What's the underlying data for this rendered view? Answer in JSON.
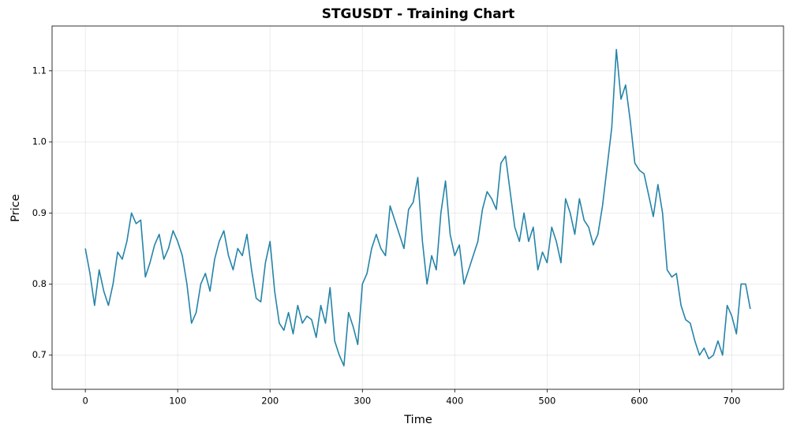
{
  "chart_data": {
    "type": "line",
    "title": "STGUSDT - Training Chart",
    "xlabel": "Time",
    "ylabel": "Price",
    "x": [
      0,
      5,
      10,
      15,
      20,
      25,
      30,
      35,
      40,
      45,
      50,
      55,
      60,
      65,
      70,
      75,
      80,
      85,
      90,
      95,
      100,
      105,
      110,
      115,
      120,
      125,
      130,
      135,
      140,
      145,
      150,
      155,
      160,
      165,
      170,
      175,
      180,
      185,
      190,
      195,
      200,
      205,
      210,
      215,
      220,
      225,
      230,
      235,
      240,
      245,
      250,
      255,
      260,
      265,
      270,
      275,
      280,
      285,
      290,
      295,
      300,
      305,
      310,
      315,
      320,
      325,
      330,
      335,
      340,
      345,
      350,
      355,
      360,
      365,
      370,
      375,
      380,
      385,
      390,
      395,
      400,
      405,
      410,
      415,
      420,
      425,
      430,
      435,
      440,
      445,
      450,
      455,
      460,
      465,
      470,
      475,
      480,
      485,
      490,
      495,
      500,
      505,
      510,
      515,
      520,
      525,
      530,
      535,
      540,
      545,
      550,
      555,
      560,
      565,
      570,
      575,
      580,
      585,
      590,
      595,
      600,
      605,
      610,
      615,
      620,
      625,
      630,
      635,
      640,
      645,
      650,
      655,
      660,
      665,
      670,
      675,
      680,
      685,
      690,
      695,
      700,
      705,
      710,
      715,
      720
    ],
    "series": [
      {
        "color": "#2584a8",
        "values": [
          0.85,
          0.815,
          0.77,
          0.82,
          0.79,
          0.77,
          0.8,
          0.845,
          0.835,
          0.86,
          0.9,
          0.885,
          0.89,
          0.81,
          0.83,
          0.855,
          0.87,
          0.835,
          0.85,
          0.875,
          0.86,
          0.84,
          0.8,
          0.745,
          0.76,
          0.8,
          0.815,
          0.79,
          0.835,
          0.86,
          0.875,
          0.84,
          0.82,
          0.85,
          0.84,
          0.87,
          0.82,
          0.78,
          0.775,
          0.83,
          0.86,
          0.79,
          0.745,
          0.735,
          0.76,
          0.73,
          0.77,
          0.745,
          0.755,
          0.75,
          0.725,
          0.77,
          0.745,
          0.795,
          0.72,
          0.7,
          0.685,
          0.76,
          0.74,
          0.715,
          0.8,
          0.815,
          0.85,
          0.87,
          0.85,
          0.84,
          0.91,
          0.89,
          0.87,
          0.85,
          0.905,
          0.915,
          0.95,
          0.86,
          0.8,
          0.84,
          0.82,
          0.9,
          0.945,
          0.87,
          0.84,
          0.855,
          0.8,
          0.82,
          0.84,
          0.86,
          0.905,
          0.93,
          0.92,
          0.905,
          0.97,
          0.98,
          0.93,
          0.88,
          0.86,
          0.9,
          0.86,
          0.88,
          0.82,
          0.845,
          0.83,
          0.88,
          0.86,
          0.83,
          0.92,
          0.9,
          0.87,
          0.92,
          0.89,
          0.88,
          0.855,
          0.87,
          0.91,
          0.965,
          1.02,
          1.13,
          1.06,
          1.08,
          1.03,
          0.97,
          0.96,
          0.955,
          0.925,
          0.895,
          0.94,
          0.9,
          0.82,
          0.81,
          0.815,
          0.77,
          0.75,
          0.745,
          0.72,
          0.7,
          0.71,
          0.695,
          0.7,
          0.72,
          0.7,
          0.77,
          0.755,
          0.73,
          0.8,
          0.8,
          0.765
        ]
      }
    ],
    "xlim": [
      -36,
      756
    ],
    "ylim": [
      0.652,
      1.163
    ],
    "xticks": [
      0,
      100,
      200,
      300,
      400,
      500,
      600,
      700
    ],
    "yticks": [
      0.7,
      0.8,
      0.9,
      {
        "value": 1,
        "label": "1.0"
      },
      1.1
    ],
    "grid": true
  }
}
